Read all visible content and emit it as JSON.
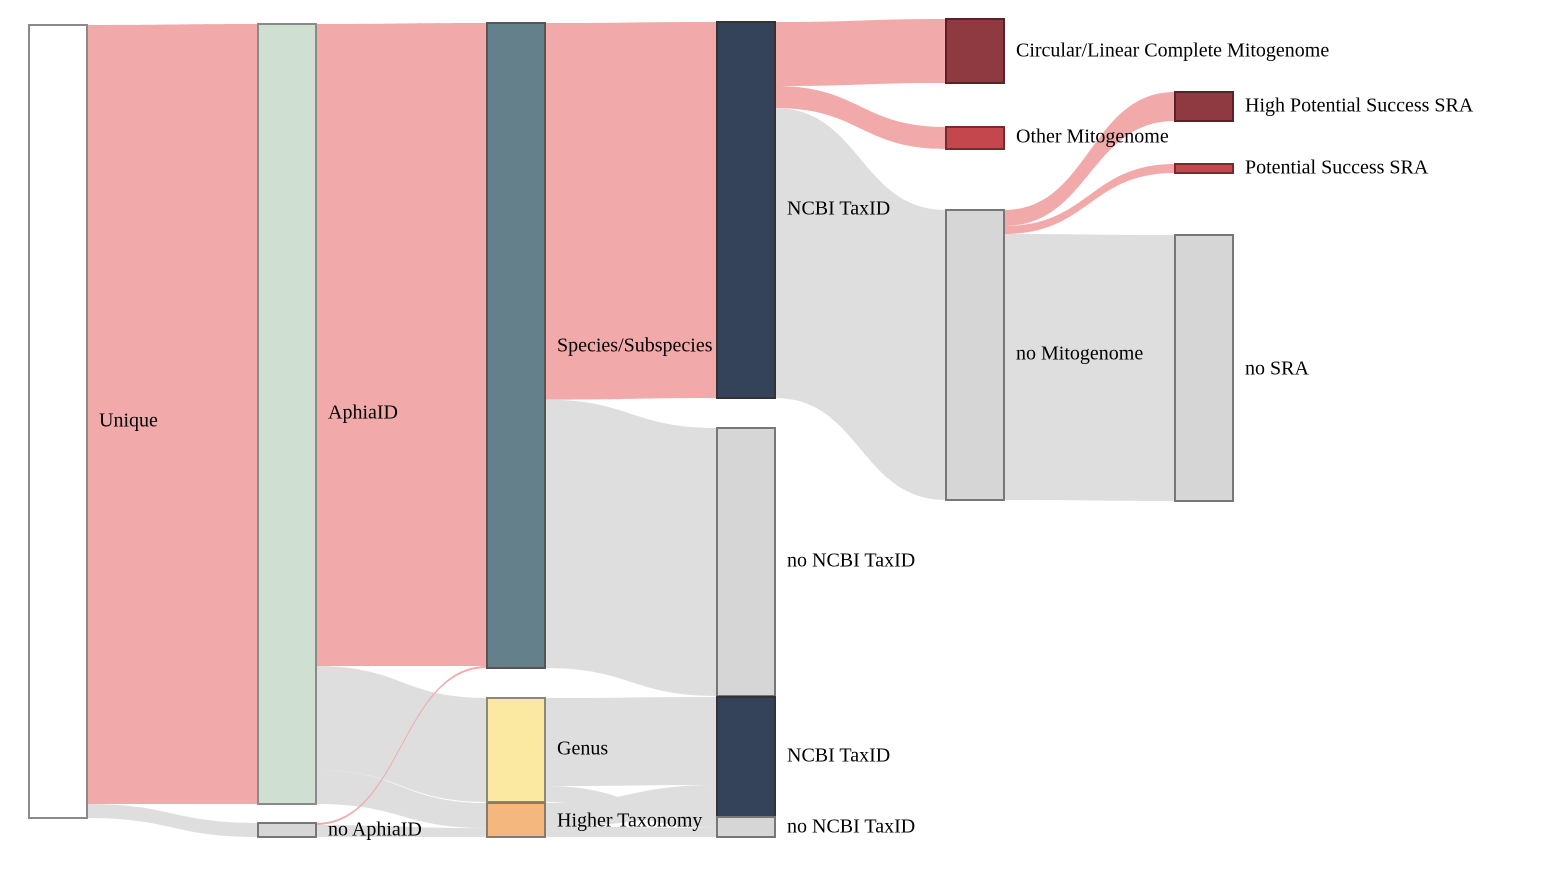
{
  "chart_data": {
    "type": "sankey",
    "nodes": [
      {
        "id": "unique",
        "label": "Unique",
        "color": "#ffffff",
        "stroke": "#8a8a8a"
      },
      {
        "id": "aphia",
        "label": "AphiaID",
        "color": "#cfe0d3",
        "stroke": "#8a8a8a"
      },
      {
        "id": "noaphia",
        "label": "no AphiaID",
        "color": "#d6d6d6",
        "stroke": "#777777"
      },
      {
        "id": "species",
        "label": "Species/Subspecies",
        "color": "#64818b",
        "stroke": "#555555"
      },
      {
        "id": "genus",
        "label": "Genus",
        "color": "#fbe9a2",
        "stroke": "#8a8a7a"
      },
      {
        "id": "higher",
        "label": "Higher Taxonomy",
        "color": "#f4b87e",
        "stroke": "#8a7a6a"
      },
      {
        "id": "ncbi1",
        "label": "NCBI TaxID",
        "color": "#34435a",
        "stroke": "#333333"
      },
      {
        "id": "noncbi1",
        "label": "no NCBI TaxID",
        "color": "#d6d6d6",
        "stroke": "#777777"
      },
      {
        "id": "ncbi2",
        "label": "NCBI TaxID",
        "color": "#34435a",
        "stroke": "#333333"
      },
      {
        "id": "noncbi2",
        "label": "no NCBI TaxID",
        "color": "#d6d6d6",
        "stroke": "#777777"
      },
      {
        "id": "complete",
        "label": "Circular/Linear Complete Mitogenome",
        "color": "#8e3a40",
        "stroke": "#5a2228"
      },
      {
        "id": "othermito",
        "label": "Other Mitogenome",
        "color": "#c4474d",
        "stroke": "#7a2a2e"
      },
      {
        "id": "nomito",
        "label": "no Mitogenome",
        "color": "#d6d6d6",
        "stroke": "#777777"
      },
      {
        "id": "highsra",
        "label": "High Potential Success SRA",
        "color": "#8e3a40",
        "stroke": "#5a2228"
      },
      {
        "id": "potsra",
        "label": "Potential Success SRA",
        "color": "#c4474d",
        "stroke": "#7a2a2e"
      },
      {
        "id": "nosra",
        "label": "no SRA",
        "color": "#d6d6d6",
        "stroke": "#777777"
      }
    ],
    "links": [
      {
        "source": "unique",
        "target": "aphia",
        "value": 780,
        "color": "#f2a9a9"
      },
      {
        "source": "unique",
        "target": "noaphia",
        "value": 14,
        "color": "#dedede"
      },
      {
        "source": "aphia",
        "target": "species",
        "value": 642,
        "color": "#f2a9a9"
      },
      {
        "source": "aphia",
        "target": "genus",
        "value": 104,
        "color": "#dedede"
      },
      {
        "source": "aphia",
        "target": "higher",
        "value": 34,
        "color": "#dedede"
      },
      {
        "source": "noaphia",
        "target": "species",
        "value": 2,
        "color": "#f2a9a9"
      },
      {
        "source": "noaphia",
        "target": "higher",
        "value": 12,
        "color": "#dedede"
      },
      {
        "source": "species",
        "target": "ncbi1",
        "value": 376,
        "color": "#f2a9a9"
      },
      {
        "source": "species",
        "target": "noncbi1",
        "value": 268,
        "color": "#dedede"
      },
      {
        "source": "genus",
        "target": "ncbi2",
        "value": 88,
        "color": "#dedede"
      },
      {
        "source": "genus",
        "target": "noncbi2",
        "value": 16,
        "color": "#dedede"
      },
      {
        "source": "higher",
        "target": "ncbi2",
        "value": 32,
        "color": "#dedede"
      },
      {
        "source": "higher",
        "target": "noncbi2",
        "value": 14,
        "color": "#dedede"
      },
      {
        "source": "ncbi1",
        "target": "complete",
        "value": 64,
        "color": "#f2a9a9"
      },
      {
        "source": "ncbi1",
        "target": "othermito",
        "value": 22,
        "color": "#f2a9a9"
      },
      {
        "source": "ncbi1",
        "target": "nomito",
        "value": 290,
        "color": "#dedede"
      },
      {
        "source": "nomito",
        "target": "highsra",
        "value": 16,
        "color": "#f2a9a9"
      },
      {
        "source": "nomito",
        "target": "potsra",
        "value": 8,
        "color": "#f2a9a9"
      },
      {
        "source": "nomito",
        "target": "nosra",
        "value": 266,
        "color": "#dedede"
      }
    ]
  }
}
